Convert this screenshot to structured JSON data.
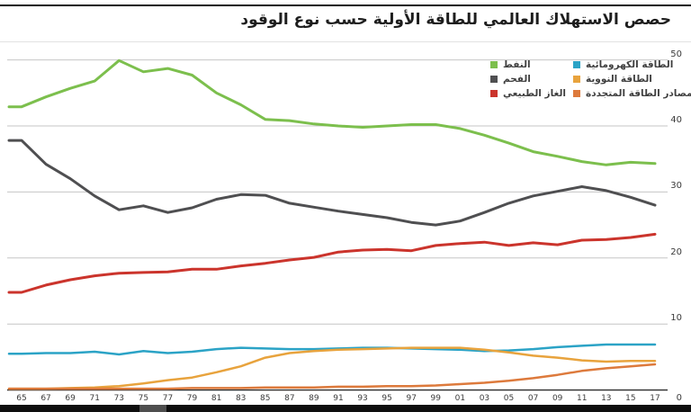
{
  "page": {
    "title": "حصص الاستهلاك العالمي للطاقة الأولية حسب نوع الوقود"
  },
  "chart_data": {
    "type": "line",
    "title": "حصص الاستهلاك العالمي للطاقة الأولية حسب نوع الوقود",
    "grid": true,
    "legend_position": "top-right",
    "xlim": [
      1965,
      2017
    ],
    "ylim": [
      0,
      50
    ],
    "x_years": [
      1965,
      1967,
      1969,
      1971,
      1973,
      1975,
      1977,
      1979,
      1981,
      1983,
      1985,
      1987,
      1989,
      1991,
      1993,
      1995,
      1997,
      1999,
      2001,
      2003,
      2005,
      2007,
      2009,
      2011,
      2013,
      2015,
      2017
    ],
    "x_tick_labels": [
      "65",
      "67",
      "69",
      "71",
      "73",
      "75",
      "77",
      "79",
      "81",
      "83",
      "85",
      "87",
      "89",
      "91",
      "93",
      "95",
      "97",
      "99",
      "01",
      "03",
      "05",
      "07",
      "09",
      "11",
      "13",
      "15",
      "17"
    ],
    "y_ticks": [
      50,
      40,
      30,
      20,
      10
    ],
    "y_zero_label": "0",
    "series": [
      {
        "id": "oil",
        "name": "النفط",
        "color": "#7cbf4d",
        "width": 3,
        "values": [
          42.9,
          44.4,
          45.7,
          46.8,
          49.9,
          48.2,
          48.7,
          47.7,
          45.0,
          43.2,
          41.0,
          40.8,
          40.3,
          40.0,
          39.8,
          40.0,
          40.2,
          40.2,
          39.6,
          38.6,
          37.4,
          36.1,
          35.4,
          34.6,
          34.1,
          34.5,
          34.3
        ]
      },
      {
        "id": "coal",
        "name": "الفحم",
        "color": "#4f4f51",
        "width": 3,
        "values": [
          37.8,
          34.2,
          32.0,
          29.4,
          27.3,
          27.9,
          26.9,
          27.6,
          28.9,
          29.6,
          29.5,
          28.3,
          27.7,
          27.1,
          26.6,
          26.1,
          25.4,
          25.0,
          25.6,
          26.9,
          28.3,
          29.4,
          30.1,
          30.8,
          30.2,
          29.2,
          28.0
        ]
      },
      {
        "id": "natural-gas",
        "name": "الغاز الطبيعي",
        "color": "#cb342c",
        "width": 3,
        "values": [
          14.8,
          15.9,
          16.7,
          17.3,
          17.7,
          17.8,
          17.9,
          18.3,
          18.3,
          18.8,
          19.2,
          19.7,
          20.1,
          20.9,
          21.2,
          21.3,
          21.1,
          21.9,
          22.2,
          22.4,
          21.9,
          22.3,
          22.0,
          22.7,
          22.8,
          23.1,
          23.6
        ]
      },
      {
        "id": "hydroelectric",
        "name": "الطاقة الكهرومائية",
        "color": "#2ba3c6",
        "width": 2.5,
        "values": [
          5.5,
          5.6,
          5.6,
          5.8,
          5.4,
          5.9,
          5.6,
          5.8,
          6.2,
          6.4,
          6.3,
          6.2,
          6.2,
          6.3,
          6.4,
          6.4,
          6.3,
          6.2,
          6.1,
          5.9,
          6.0,
          6.2,
          6.5,
          6.7,
          6.9,
          6.9,
          6.9
        ]
      },
      {
        "id": "nuclear",
        "name": "الطاقة النووية",
        "color": "#e8a33d",
        "width": 2.5,
        "values": [
          0.2,
          0.2,
          0.3,
          0.4,
          0.6,
          1.0,
          1.5,
          1.9,
          2.7,
          3.6,
          4.9,
          5.6,
          5.9,
          6.1,
          6.2,
          6.3,
          6.4,
          6.4,
          6.4,
          6.1,
          5.7,
          5.2,
          4.9,
          4.5,
          4.3,
          4.4,
          4.4
        ]
      },
      {
        "id": "renewables",
        "name": "مصادر الطاقة المتجددة",
        "color": "#dd7a3c",
        "width": 2.5,
        "values": [
          0.2,
          0.2,
          0.2,
          0.2,
          0.2,
          0.2,
          0.2,
          0.3,
          0.3,
          0.3,
          0.4,
          0.4,
          0.4,
          0.5,
          0.5,
          0.6,
          0.6,
          0.7,
          0.9,
          1.1,
          1.4,
          1.8,
          2.3,
          2.9,
          3.3,
          3.6,
          3.9
        ]
      }
    ],
    "legend_columns": {
      "left": [
        "oil",
        "coal",
        "natural-gas"
      ],
      "right": [
        "hydroelectric",
        "nuclear",
        "renewables"
      ]
    }
  }
}
